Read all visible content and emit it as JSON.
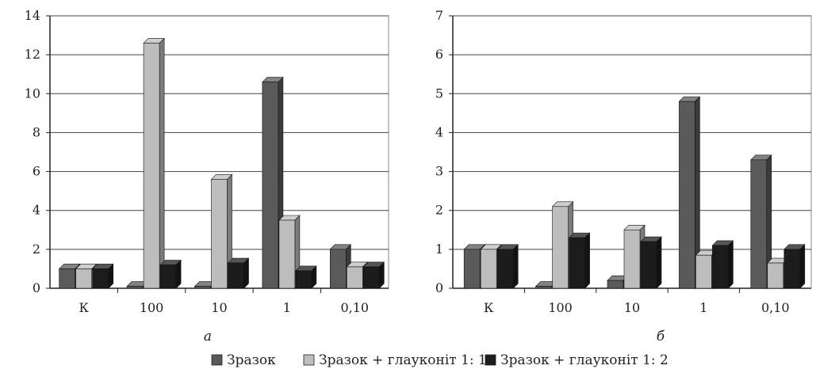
{
  "legend": [
    {
      "label": "Зразок",
      "color": "#5a5a5a"
    },
    {
      "label": "Зразок + глауконіт 1: 1",
      "color": "#bdbdbd"
    },
    {
      "label": "Зразок + глауконіт 1: 2",
      "color": "#1c1c1c"
    }
  ],
  "chart_data": [
    {
      "type": "bar",
      "panel_label": "а",
      "categories": [
        "К",
        "100",
        "10",
        "1",
        "0,10"
      ],
      "ylim": [
        0,
        14
      ],
      "yticks": [
        "0",
        "2",
        "4",
        "6",
        "8",
        "10",
        "12",
        "14"
      ],
      "grid": true,
      "legend_position": "bottom",
      "series": [
        {
          "name": "Зразок",
          "values": [
            1.0,
            0.1,
            0.1,
            10.6,
            2.0
          ]
        },
        {
          "name": "Зразок + глауконіт 1: 1",
          "values": [
            1.0,
            12.6,
            5.6,
            3.5,
            1.1
          ]
        },
        {
          "name": "Зразок + глауконіт 1: 2",
          "values": [
            1.0,
            1.2,
            1.3,
            0.9,
            1.1
          ]
        }
      ]
    },
    {
      "type": "bar",
      "panel_label": "б",
      "categories": [
        "К",
        "100",
        "10",
        "1",
        "0,10"
      ],
      "ylim": [
        0,
        7
      ],
      "yticks": [
        "0",
        "1",
        "2",
        "3",
        "4",
        "5",
        "6",
        "7"
      ],
      "grid": true,
      "legend_position": "bottom",
      "series": [
        {
          "name": "Зразок",
          "values": [
            1.0,
            0.05,
            0.2,
            4.8,
            3.3
          ]
        },
        {
          "name": "Зразок + глауконіт 1: 1",
          "values": [
            1.0,
            2.1,
            1.5,
            0.85,
            0.65
          ]
        },
        {
          "name": "Зразок + глауконіт 1: 2",
          "values": [
            1.0,
            1.3,
            1.2,
            1.1,
            1.0
          ]
        }
      ]
    }
  ]
}
